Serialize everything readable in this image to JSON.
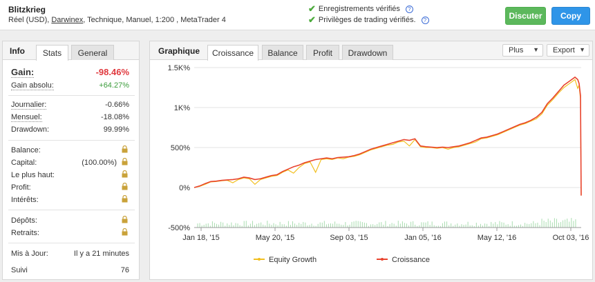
{
  "header": {
    "title": "Blitzkrieg",
    "sub_prefix": "Réel (USD), ",
    "sub_broker": "Darwinex",
    "sub_suffix": ", Technique, Manuel, 1:200 , MetaTrader 4",
    "verif1": "Enregistrements vérifiés",
    "verif2": "Privilèges de trading vérifiés.",
    "btn_discuss": "Discuter",
    "btn_copy": "Copy"
  },
  "left": {
    "tab_title": "Info",
    "tabs": [
      "Stats",
      "General"
    ],
    "gain_label": "Gain:",
    "gain_value": "-98.46%",
    "abs_label": "Gain absolu:",
    "abs_value": "+64.27%",
    "daily_label": "Journalier:",
    "daily_value": "-0.66%",
    "monthly_label": "Mensuel:",
    "monthly_value": "-18.08%",
    "dd_label": "Drawdown:",
    "dd_value": "99.99%",
    "balance_label": "Balance:",
    "capital_label": "Capital:",
    "capital_value": "(100.00%)",
    "highest_label": "Le plus haut:",
    "profit_label": "Profit:",
    "interest_label": "Intérêts:",
    "deposits_label": "Dépôts:",
    "withdrawals_label": "Retraits:",
    "updated_label": "Mis à Jour:",
    "updated_value": "Il y a 21 minutes",
    "followers_label": "Suivi",
    "followers_value": "76"
  },
  "right": {
    "tab_title": "Graphique",
    "tabs": [
      "Croissance",
      "Balance",
      "Profit",
      "Drawdown"
    ],
    "more": "Plus",
    "export": "Export"
  },
  "colors": {
    "growth": "#e8432e",
    "equity": "#f2bf1f",
    "volume": "#a9ddb0",
    "positive": "#3b9c3b",
    "negative": "#e0393e"
  },
  "chart_data": {
    "type": "line",
    "x_ticks": [
      "Jan 18, '15",
      "May 20, '15",
      "Sep 03, '15",
      "Jan 05, '16",
      "May 12, '16",
      "Oct 03, '16"
    ],
    "y_ticks": [
      "1.5K%",
      "1K%",
      "500%",
      "0%",
      "-500%"
    ],
    "y_tick_values": [
      1500,
      1000,
      500,
      0,
      -500
    ],
    "ylim": [
      -500,
      1500
    ],
    "series": [
      {
        "name": "Croissance",
        "x": [
          0,
          8,
          16,
          24,
          32,
          40,
          48,
          56,
          64,
          72,
          80,
          88,
          96,
          104,
          112,
          120,
          128,
          136,
          144,
          152,
          160,
          168,
          176,
          184,
          192,
          200,
          208,
          216,
          224,
          232,
          240,
          248,
          256,
          264,
          272,
          280,
          288,
          296,
          304,
          312,
          320,
          328,
          336,
          344,
          352,
          360,
          368,
          376,
          384,
          392,
          400,
          408,
          416,
          424,
          432,
          440,
          448,
          456,
          464,
          472,
          480,
          488,
          496,
          504,
          512,
          520,
          528,
          536,
          544,
          552,
          556,
          558,
          560,
          561
        ],
        "values": [
          0,
          20,
          50,
          75,
          80,
          90,
          95,
          100,
          110,
          130,
          120,
          100,
          110,
          130,
          150,
          160,
          200,
          230,
          260,
          280,
          310,
          330,
          350,
          360,
          370,
          360,
          375,
          380,
          385,
          400,
          420,
          450,
          480,
          500,
          520,
          540,
          560,
          580,
          600,
          590,
          610,
          520,
          510,
          505,
          500,
          505,
          500,
          510,
          520,
          540,
          560,
          590,
          620,
          630,
          650,
          670,
          700,
          730,
          760,
          790,
          810,
          840,
          880,
          940,
          1050,
          1120,
          1200,
          1280,
          1330,
          1380,
          1350,
          1300,
          1150,
          -100
        ]
      },
      {
        "name": "Equity Growth",
        "x": [
          0,
          8,
          16,
          24,
          32,
          40,
          48,
          56,
          64,
          72,
          80,
          88,
          96,
          104,
          112,
          120,
          128,
          136,
          144,
          152,
          160,
          168,
          176,
          184,
          192,
          200,
          208,
          216,
          224,
          232,
          240,
          248,
          256,
          264,
          272,
          280,
          288,
          296,
          304,
          312,
          320,
          328,
          336,
          344,
          352,
          360,
          368,
          376,
          384,
          392,
          400,
          408,
          416,
          424,
          432,
          440,
          448,
          456,
          464,
          472,
          480,
          488,
          496,
          504,
          512,
          520,
          528,
          536,
          544,
          552,
          556,
          558,
          560,
          561
        ],
        "values": [
          0,
          15,
          40,
          70,
          75,
          85,
          90,
          60,
          100,
          120,
          110,
          40,
          100,
          120,
          140,
          150,
          190,
          220,
          180,
          250,
          300,
          320,
          190,
          350,
          360,
          350,
          370,
          360,
          380,
          390,
          410,
          440,
          470,
          490,
          510,
          530,
          540,
          570,
          580,
          520,
          600,
          510,
          500,
          500,
          490,
          500,
          480,
          500,
          510,
          530,
          550,
          570,
          610,
          620,
          640,
          660,
          690,
          720,
          750,
          780,
          800,
          830,
          860,
          920,
          1030,
          1100,
          1180,
          1250,
          1300,
          1350,
          1240,
          1280,
          1100,
          -100
        ]
      }
    ],
    "legend_position": "bottom",
    "grid": true
  }
}
